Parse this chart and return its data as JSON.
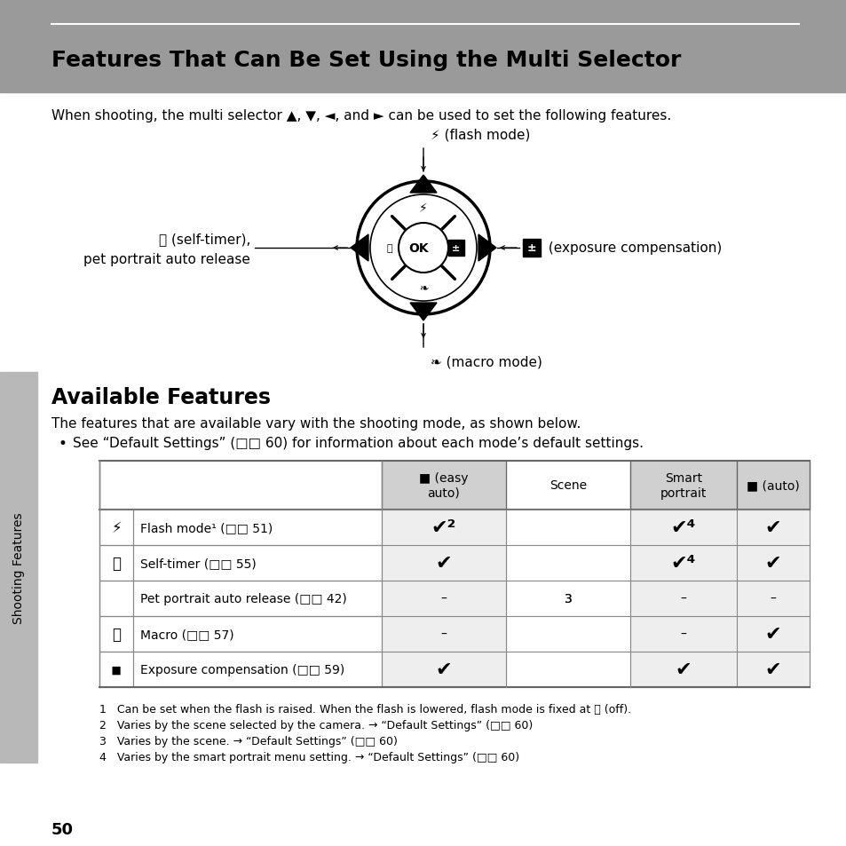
{
  "title": "Features That Can Be Set Using the Multi Selector",
  "header_bg": "#9a9a9a",
  "page_bg": "#ffffff",
  "intro_text": "When shooting, the multi selector ▲, ▼, ◄, and ► can be used to set the following features.",
  "section2_title": "Available Features",
  "section2_intro": "The features that are available vary with the shooting mode, as shown below.",
  "section2_bullet": "See “Default Settings” (□□ 60) for information about each mode’s default settings.",
  "col_headers": [
    "■ (easy\nauto)",
    "Scene",
    "Smart\nportrait",
    "■ (auto)"
  ],
  "col_header_bg": [
    "#d0d0d0",
    "#ffffff",
    "#d0d0d0",
    "#d0d0d0"
  ],
  "rows": [
    {
      "icon": "⚡",
      "label": "Flash mode¹ (□□ 51)",
      "cells": [
        "✔²",
        "",
        "✔⁴",
        "✔"
      ]
    },
    {
      "icon": "⌛",
      "label": "Self-timer (□□ 55)",
      "cells": [
        "✔",
        "",
        "✔⁴",
        "✔"
      ]
    },
    {
      "icon": "",
      "label": "Pet portrait auto release (□□ 42)",
      "cells": [
        "–",
        "3",
        "–",
        "–"
      ]
    },
    {
      "icon": "⚿",
      "label": "Macro (□□ 57)",
      "cells": [
        "–",
        "",
        "–",
        "✔"
      ]
    },
    {
      "icon": "◾",
      "label": "Exposure compensation (□□ 59)",
      "cells": [
        "✔",
        "",
        "✔",
        "✔"
      ]
    }
  ],
  "footnotes": [
    "1   Can be set when the flash is raised. When the flash is lowered, flash mode is fixed at ⓪ (off).",
    "2   Varies by the scene selected by the camera. → “Default Settings” (□□ 60)",
    "3   Varies by the scene. → “Default Settings” (□□ 60)",
    "4   Varies by the smart portrait menu setting. → “Default Settings” (□□ 60)"
  ],
  "page_number": "50",
  "sidebar_text": "Shooting Features",
  "sidebar_bg": "#b8b8b8"
}
